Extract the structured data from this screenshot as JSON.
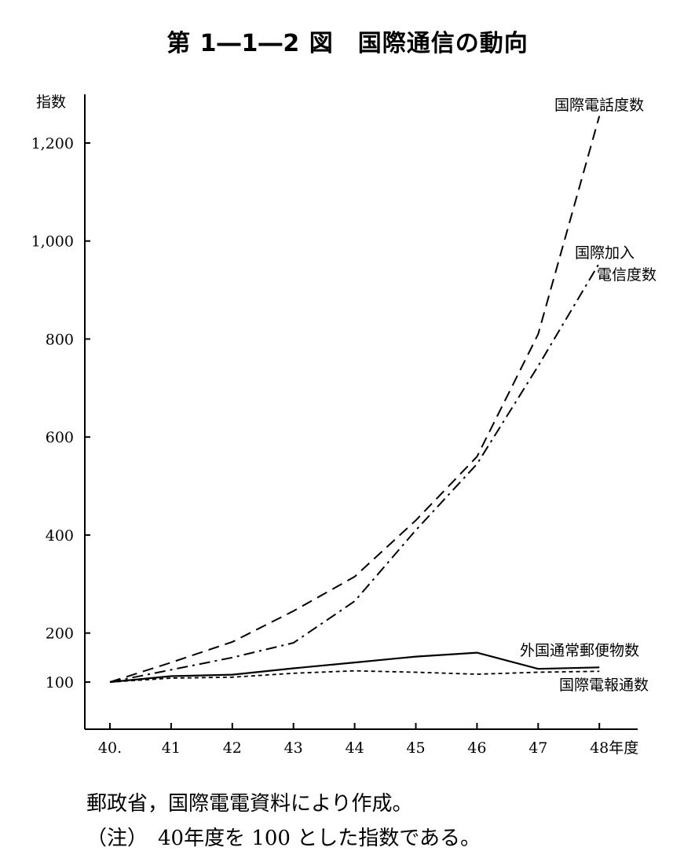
{
  "title": "第 1―1―2 図　国際通信の動向",
  "chart_data": {
    "type": "line",
    "ylabel": "指数",
    "xlabel": "年度",
    "categories": [
      "40.",
      "41",
      "42",
      "43",
      "44",
      "45",
      "46",
      "47",
      "48"
    ],
    "x_suffix_last": "年度",
    "yticks": [
      100,
      200,
      400,
      600,
      800,
      1000,
      1200
    ],
    "ytick_labels": [
      "100",
      "200",
      "400",
      "600",
      "800",
      "1,000",
      "1,200"
    ],
    "ylim": [
      0,
      1300
    ],
    "grid": false,
    "series": [
      {
        "name": "国際電話度数",
        "style": "dashed",
        "values": [
          100,
          140,
          182,
          245,
          315,
          430,
          560,
          810,
          1255
        ]
      },
      {
        "name": "国際加入電信度数",
        "style": "dashdot",
        "name_lines": [
          "国際加入",
          "電信度数"
        ],
        "values": [
          100,
          125,
          150,
          180,
          265,
          410,
          545,
          745,
          955
        ]
      },
      {
        "name": "外国通常郵便物数",
        "style": "solid",
        "values": [
          100,
          112,
          115,
          128,
          140,
          152,
          160,
          127,
          130
        ]
      },
      {
        "name": "国際電報通数",
        "style": "dotted",
        "values": [
          100,
          108,
          110,
          118,
          123,
          120,
          116,
          120,
          122
        ]
      }
    ]
  },
  "notes": [
    "郵政省，国際電電資料により作成。",
    "（注）　40年度を 100 とした指数である。"
  ]
}
